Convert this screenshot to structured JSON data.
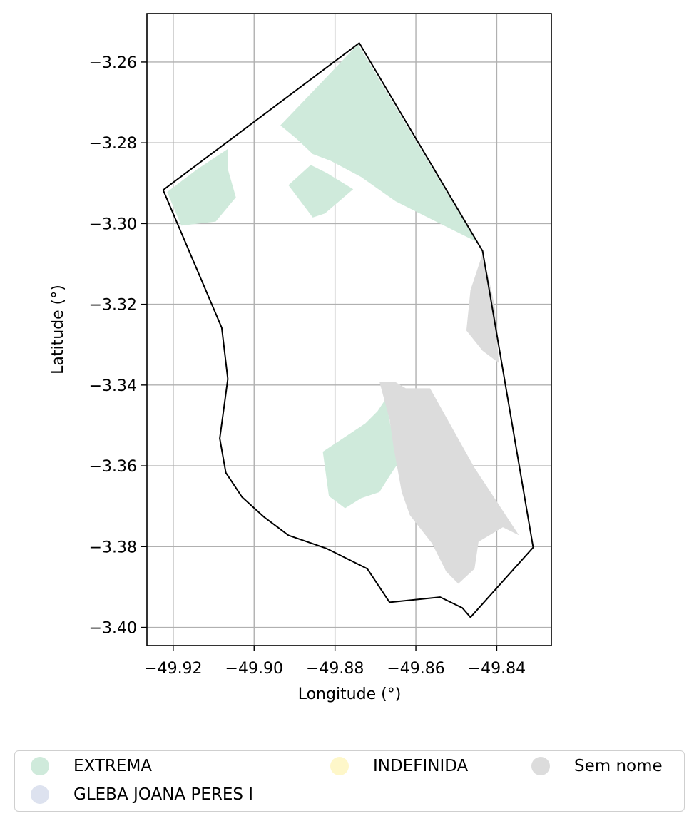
{
  "chart_data": {
    "type": "map",
    "xlabel": "Longitude (°)",
    "ylabel": "Latitude (°)",
    "xlim": [
      -49.9265,
      -49.8265
    ],
    "ylim": [
      -3.4045,
      -3.248
    ],
    "x_ticks": [
      {
        "value": -49.92,
        "label": "−49.92"
      },
      {
        "value": -49.9,
        "label": "−49.90"
      },
      {
        "value": -49.88,
        "label": "−49.88"
      },
      {
        "value": -49.86,
        "label": "−49.86"
      },
      {
        "value": -49.84,
        "label": "−49.84"
      }
    ],
    "y_ticks": [
      {
        "value": -3.26,
        "label": "−3.26"
      },
      {
        "value": -3.28,
        "label": "−3.28"
      },
      {
        "value": -3.3,
        "label": "−3.30"
      },
      {
        "value": -3.32,
        "label": "−3.32"
      },
      {
        "value": -3.34,
        "label": "−3.34"
      },
      {
        "value": -3.36,
        "label": "−3.36"
      },
      {
        "value": -3.38,
        "label": "−3.38"
      },
      {
        "value": -3.4,
        "label": "−3.40"
      }
    ],
    "grid": true,
    "legend_position": "bottom",
    "boundary": [
      [
        -49.874,
        -3.2553
      ],
      [
        -49.8435,
        -3.3068
      ],
      [
        -49.831,
        -3.3802
      ],
      [
        -49.8465,
        -3.3975
      ],
      [
        -49.8485,
        -3.3952
      ],
      [
        -49.854,
        -3.3925
      ],
      [
        -49.8665,
        -3.3938
      ],
      [
        -49.872,
        -3.3855
      ],
      [
        -49.882,
        -3.3805
      ],
      [
        -49.8915,
        -3.3772
      ],
      [
        -49.8975,
        -3.3727
      ],
      [
        -49.903,
        -3.3677
      ],
      [
        -49.907,
        -3.3617
      ],
      [
        -49.9085,
        -3.3532
      ],
      [
        -49.9065,
        -3.3385
      ],
      [
        -49.908,
        -3.3258
      ],
      [
        -49.9225,
        -3.2917
      ]
    ],
    "regions": [
      {
        "category": "EXTREMA",
        "polygon": [
          [
            -49.8743,
            -3.2556
          ],
          [
            -49.8568,
            -3.2849
          ],
          [
            -49.845,
            -3.3045
          ],
          [
            -49.855,
            -3.2995
          ],
          [
            -49.865,
            -3.2945
          ],
          [
            -49.8735,
            -3.2885
          ],
          [
            -49.881,
            -3.2845
          ],
          [
            -49.8855,
            -3.2828
          ],
          [
            -49.8895,
            -3.279
          ],
          [
            -49.8935,
            -3.2757
          ]
        ]
      },
      {
        "category": "EXTREMA",
        "polygon": [
          [
            -49.9065,
            -3.2815
          ],
          [
            -49.914,
            -3.2865
          ],
          [
            -49.9215,
            -3.2922
          ],
          [
            -49.918,
            -3.3005
          ],
          [
            -49.9095,
            -3.2995
          ],
          [
            -49.9045,
            -3.2935
          ],
          [
            -49.9065,
            -3.2865
          ]
        ]
      },
      {
        "category": "EXTREMA",
        "polygon": [
          [
            -49.8915,
            -3.2905
          ],
          [
            -49.886,
            -3.2855
          ],
          [
            -49.882,
            -3.2875
          ],
          [
            -49.8755,
            -3.2915
          ],
          [
            -49.8825,
            -3.2975
          ],
          [
            -49.8855,
            -3.2985
          ]
        ]
      },
      {
        "category": "EXTREMA",
        "polygon": [
          [
            -49.8675,
            -3.3435
          ],
          [
            -49.8695,
            -3.3465
          ],
          [
            -49.8725,
            -3.3495
          ],
          [
            -49.883,
            -3.3565
          ],
          [
            -49.8815,
            -3.3675
          ],
          [
            -49.8775,
            -3.3705
          ],
          [
            -49.8735,
            -3.368
          ],
          [
            -49.869,
            -3.3665
          ],
          [
            -49.8665,
            -3.3625
          ],
          [
            -49.8645,
            -3.3595
          ]
        ]
      },
      {
        "category": "Sem nome",
        "polygon": [
          [
            -49.8435,
            -3.3075
          ],
          [
            -49.8445,
            -3.3105
          ],
          [
            -49.8465,
            -3.3165
          ],
          [
            -49.8475,
            -3.3265
          ],
          [
            -49.8435,
            -3.3315
          ],
          [
            -49.8395,
            -3.3345
          ],
          [
            -49.8405,
            -3.3205
          ],
          [
            -49.842,
            -3.3135
          ]
        ]
      },
      {
        "category": "Sem nome",
        "polygon": [
          [
            -49.869,
            -3.3392
          ],
          [
            -49.865,
            -3.3393
          ],
          [
            -49.8625,
            -3.3408
          ],
          [
            -49.8565,
            -3.3408
          ],
          [
            -49.8455,
            -3.3605
          ],
          [
            -49.8345,
            -3.3772
          ],
          [
            -49.8385,
            -3.3752
          ],
          [
            -49.8445,
            -3.3788
          ],
          [
            -49.8455,
            -3.3855
          ],
          [
            -49.8495,
            -3.3892
          ],
          [
            -49.8525,
            -3.3862
          ],
          [
            -49.856,
            -3.3792
          ],
          [
            -49.8615,
            -3.3722
          ],
          [
            -49.8635,
            -3.3665
          ],
          [
            -49.8655,
            -3.3555
          ],
          [
            -49.8665,
            -3.3485
          ]
        ]
      }
    ],
    "legend": [
      {
        "label": "EXTREMA",
        "color": "#cfeadb"
      },
      {
        "label": "GLEBA JOANA PERES I",
        "color": "#dde2ef"
      },
      {
        "label": "INDEFINIDA",
        "color": "#fef7c9"
      },
      {
        "label": "Sem nome",
        "color": "#dcdcdc"
      }
    ],
    "colors": {
      "boundary": "#000000",
      "grid": "#b0b0b0"
    }
  }
}
